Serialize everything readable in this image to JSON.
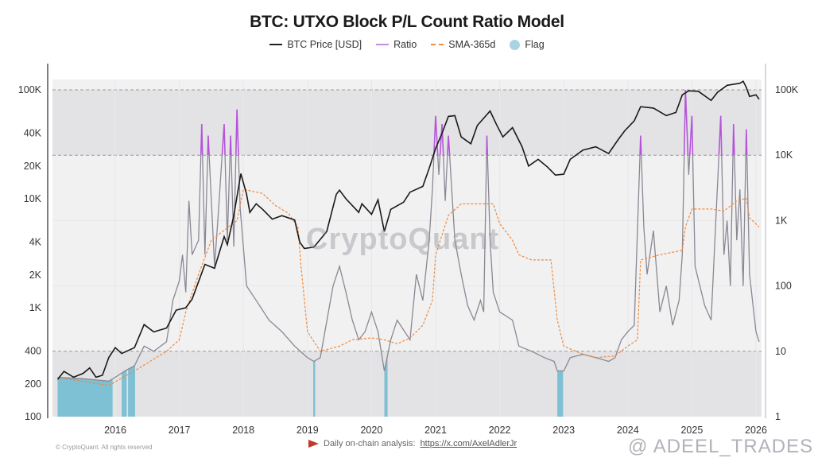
{
  "chart_data": {
    "type": "line",
    "title": "BTC: UTXO Block P/L Count Ratio Model",
    "legend": {
      "placement": "top-center",
      "entries": [
        {
          "label": "BTC Price [USD]",
          "color": "#222222",
          "style": "solid"
        },
        {
          "label": "Ratio",
          "color": "#b455d8",
          "style": "solid"
        },
        {
          "label": "SMA-365d",
          "color": "#f08a3c",
          "style": "dashed"
        },
        {
          "label": "Flag",
          "color": "#a9d3e3",
          "style": "dot"
        }
      ]
    },
    "x_ticks": [
      "2016",
      "2017",
      "2018",
      "2019",
      "2020",
      "2021",
      "2022",
      "2023",
      "2024",
      "2025",
      "2026"
    ],
    "x_range": [
      2015.1,
      2026.05
    ],
    "left_axis": {
      "scale": "log",
      "range": [
        100,
        100000
      ],
      "ticks": [
        "100K",
        "40K",
        "20K",
        "10K",
        "4K",
        "2K",
        "1K",
        "400",
        "200",
        "100"
      ],
      "tick_values": [
        100000,
        40000,
        20000,
        10000,
        4000,
        2000,
        1000,
        400,
        200,
        100
      ]
    },
    "right_axis": {
      "scale": "log",
      "range": [
        1,
        100000
      ],
      "ticks": [
        "100K",
        "10K",
        "1K",
        "100",
        "10",
        "1"
      ],
      "tick_values": [
        100000,
        10000,
        1000,
        100,
        10,
        1
      ]
    },
    "bands": {
      "upper": [
        10000,
        100000
      ],
      "lower": [
        1,
        10
      ],
      "color": "#e3e3e6"
    },
    "colors": {
      "ratio": "#8a8793",
      "ratio_high": "#b455d8",
      "price": "#1a1a1a",
      "sma": "#f08a3c",
      "flag": "#7fc0d4"
    },
    "series": [
      {
        "name": "BTC Price [USD]",
        "axis": "left",
        "points": [
          [
            2015.1,
            220
          ],
          [
            2015.2,
            260
          ],
          [
            2015.35,
            230
          ],
          [
            2015.5,
            250
          ],
          [
            2015.6,
            280
          ],
          [
            2015.7,
            230
          ],
          [
            2015.8,
            240
          ],
          [
            2015.9,
            350
          ],
          [
            2016.0,
            430
          ],
          [
            2016.1,
            380
          ],
          [
            2016.3,
            430
          ],
          [
            2016.45,
            700
          ],
          [
            2016.6,
            600
          ],
          [
            2016.8,
            650
          ],
          [
            2016.95,
            950
          ],
          [
            2017.1,
            1000
          ],
          [
            2017.2,
            1200
          ],
          [
            2017.4,
            2500
          ],
          [
            2017.55,
            2300
          ],
          [
            2017.7,
            4500
          ],
          [
            2017.75,
            3800
          ],
          [
            2017.85,
            7000
          ],
          [
            2017.96,
            17000
          ],
          [
            2018.05,
            11000
          ],
          [
            2018.1,
            7500
          ],
          [
            2018.2,
            9000
          ],
          [
            2018.3,
            8000
          ],
          [
            2018.45,
            6500
          ],
          [
            2018.6,
            7000
          ],
          [
            2018.8,
            6400
          ],
          [
            2018.88,
            4000
          ],
          [
            2018.95,
            3500
          ],
          [
            2019.1,
            3600
          ],
          [
            2019.3,
            5000
          ],
          [
            2019.45,
            11000
          ],
          [
            2019.5,
            12000
          ],
          [
            2019.6,
            10000
          ],
          [
            2019.8,
            7500
          ],
          [
            2019.85,
            9000
          ],
          [
            2020.0,
            7200
          ],
          [
            2020.1,
            9800
          ],
          [
            2020.2,
            5000
          ],
          [
            2020.3,
            8000
          ],
          [
            2020.5,
            9300
          ],
          [
            2020.6,
            11500
          ],
          [
            2020.8,
            13000
          ],
          [
            2020.9,
            19000
          ],
          [
            2021.0,
            29000
          ],
          [
            2021.1,
            40000
          ],
          [
            2021.2,
            57000
          ],
          [
            2021.3,
            58000
          ],
          [
            2021.4,
            37000
          ],
          [
            2021.55,
            32000
          ],
          [
            2021.65,
            47000
          ],
          [
            2021.85,
            64000
          ],
          [
            2021.95,
            48000
          ],
          [
            2022.05,
            37000
          ],
          [
            2022.2,
            45000
          ],
          [
            2022.35,
            30000
          ],
          [
            2022.45,
            20000
          ],
          [
            2022.6,
            23000
          ],
          [
            2022.75,
            19500
          ],
          [
            2022.87,
            16500
          ],
          [
            2023.0,
            16800
          ],
          [
            2023.1,
            23000
          ],
          [
            2023.3,
            28000
          ],
          [
            2023.5,
            30000
          ],
          [
            2023.7,
            26000
          ],
          [
            2023.85,
            35000
          ],
          [
            2023.95,
            42000
          ],
          [
            2024.1,
            52000
          ],
          [
            2024.2,
            70000
          ],
          [
            2024.4,
            68000
          ],
          [
            2024.6,
            58000
          ],
          [
            2024.75,
            62000
          ],
          [
            2024.85,
            90000
          ],
          [
            2024.95,
            98000
          ],
          [
            2025.1,
            97000
          ],
          [
            2025.3,
            80000
          ],
          [
            2025.4,
            95000
          ],
          [
            2025.55,
            110000
          ],
          [
            2025.75,
            115000
          ],
          [
            2025.8,
            120000
          ],
          [
            2025.85,
            105000
          ],
          [
            2025.9,
            87000
          ],
          [
            2026.0,
            90000
          ],
          [
            2026.05,
            82000
          ]
        ]
      },
      {
        "name": "Ratio",
        "axis": "right",
        "points": [
          [
            2015.1,
            4
          ],
          [
            2015.5,
            3.8
          ],
          [
            2015.9,
            3.5
          ],
          [
            2016.0,
            4
          ],
          [
            2016.15,
            5
          ],
          [
            2016.3,
            6
          ],
          [
            2016.45,
            12
          ],
          [
            2016.6,
            10
          ],
          [
            2016.8,
            14
          ],
          [
            2016.9,
            60
          ],
          [
            2017.0,
            120
          ],
          [
            2017.05,
            300
          ],
          [
            2017.1,
            80
          ],
          [
            2017.15,
            2000
          ],
          [
            2017.2,
            300
          ],
          [
            2017.3,
            500
          ],
          [
            2017.35,
            30000
          ],
          [
            2017.4,
            300
          ],
          [
            2017.45,
            20000
          ],
          [
            2017.55,
            200
          ],
          [
            2017.6,
            1000
          ],
          [
            2017.7,
            30000
          ],
          [
            2017.75,
            500
          ],
          [
            2017.8,
            20000
          ],
          [
            2017.85,
            400
          ],
          [
            2017.9,
            50000
          ],
          [
            2017.95,
            1500
          ],
          [
            2018.05,
            100
          ],
          [
            2018.2,
            60
          ],
          [
            2018.4,
            30
          ],
          [
            2018.6,
            20
          ],
          [
            2018.8,
            12
          ],
          [
            2019.0,
            8
          ],
          [
            2019.1,
            7
          ],
          [
            2019.2,
            8
          ],
          [
            2019.4,
            100
          ],
          [
            2019.5,
            200
          ],
          [
            2019.6,
            80
          ],
          [
            2019.7,
            30
          ],
          [
            2019.8,
            15
          ],
          [
            2019.9,
            20
          ],
          [
            2020.0,
            40
          ],
          [
            2020.1,
            20
          ],
          [
            2020.2,
            5
          ],
          [
            2020.3,
            15
          ],
          [
            2020.4,
            30
          ],
          [
            2020.6,
            15
          ],
          [
            2020.7,
            150
          ],
          [
            2020.8,
            60
          ],
          [
            2020.9,
            500
          ],
          [
            2020.95,
            3000
          ],
          [
            2021.0,
            40000
          ],
          [
            2021.05,
            5000
          ],
          [
            2021.1,
            30000
          ],
          [
            2021.15,
            2000
          ],
          [
            2021.2,
            20000
          ],
          [
            2021.3,
            500
          ],
          [
            2021.4,
            150
          ],
          [
            2021.5,
            50
          ],
          [
            2021.6,
            30
          ],
          [
            2021.7,
            60
          ],
          [
            2021.75,
            40
          ],
          [
            2021.8,
            20000
          ],
          [
            2021.85,
            500
          ],
          [
            2021.9,
            80
          ],
          [
            2022.0,
            40
          ],
          [
            2022.2,
            30
          ],
          [
            2022.3,
            12
          ],
          [
            2022.5,
            10
          ],
          [
            2022.7,
            8
          ],
          [
            2022.85,
            7
          ],
          [
            2022.9,
            5
          ],
          [
            2023.0,
            5
          ],
          [
            2023.1,
            8
          ],
          [
            2023.3,
            9
          ],
          [
            2023.5,
            8
          ],
          [
            2023.7,
            7
          ],
          [
            2023.8,
            8
          ],
          [
            2023.9,
            15
          ],
          [
            2024.0,
            20
          ],
          [
            2024.1,
            25
          ],
          [
            2024.2,
            20000
          ],
          [
            2024.25,
            800
          ],
          [
            2024.3,
            150
          ],
          [
            2024.4,
            700
          ],
          [
            2024.5,
            40
          ],
          [
            2024.6,
            100
          ],
          [
            2024.7,
            25
          ],
          [
            2024.8,
            60
          ],
          [
            2024.85,
            300
          ],
          [
            2024.9,
            100000
          ],
          [
            2024.95,
            5000
          ],
          [
            2025.0,
            40000
          ],
          [
            2025.05,
            200
          ],
          [
            2025.2,
            50
          ],
          [
            2025.3,
            30
          ],
          [
            2025.45,
            40000
          ],
          [
            2025.5,
            300
          ],
          [
            2025.55,
            1000
          ],
          [
            2025.6,
            100
          ],
          [
            2025.65,
            30000
          ],
          [
            2025.7,
            500
          ],
          [
            2025.75,
            3000
          ],
          [
            2025.8,
            100
          ],
          [
            2025.85,
            25000
          ],
          [
            2025.9,
            150
          ],
          [
            2026.0,
            20
          ],
          [
            2026.05,
            14
          ]
        ]
      },
      {
        "name": "SMA-365d",
        "axis": "right",
        "points": [
          [
            2015.1,
            4
          ],
          [
            2015.9,
            3
          ],
          [
            2016.3,
            5
          ],
          [
            2016.8,
            10
          ],
          [
            2017.0,
            15
          ],
          [
            2017.1,
            40
          ],
          [
            2017.3,
            150
          ],
          [
            2017.5,
            500
          ],
          [
            2017.6,
            600
          ],
          [
            2017.9,
            1000
          ],
          [
            2018.0,
            3000
          ],
          [
            2018.3,
            2600
          ],
          [
            2018.5,
            1700
          ],
          [
            2018.7,
            1300
          ],
          [
            2018.85,
            800
          ],
          [
            2018.9,
            200
          ],
          [
            2019.0,
            20
          ],
          [
            2019.2,
            10
          ],
          [
            2019.5,
            12
          ],
          [
            2019.7,
            15
          ],
          [
            2020.0,
            16
          ],
          [
            2020.2,
            15
          ],
          [
            2020.4,
            13
          ],
          [
            2020.6,
            16
          ],
          [
            2020.8,
            25
          ],
          [
            2020.95,
            60
          ],
          [
            2021.0,
            300
          ],
          [
            2021.2,
            1200
          ],
          [
            2021.4,
            1800
          ],
          [
            2021.6,
            1800
          ],
          [
            2021.9,
            1800
          ],
          [
            2022.0,
            900
          ],
          [
            2022.2,
            500
          ],
          [
            2022.3,
            300
          ],
          [
            2022.5,
            250
          ],
          [
            2022.8,
            250
          ],
          [
            2022.9,
            30
          ],
          [
            2023.0,
            12
          ],
          [
            2023.3,
            9
          ],
          [
            2023.5,
            8
          ],
          [
            2023.8,
            8.5
          ],
          [
            2024.0,
            12
          ],
          [
            2024.15,
            15
          ],
          [
            2024.2,
            250
          ],
          [
            2024.5,
            300
          ],
          [
            2024.85,
            350
          ],
          [
            2024.9,
            800
          ],
          [
            2025.0,
            1500
          ],
          [
            2025.3,
            1500
          ],
          [
            2025.5,
            1400
          ],
          [
            2025.7,
            2000
          ],
          [
            2025.85,
            2200
          ],
          [
            2025.9,
            1100
          ],
          [
            2026.05,
            800
          ]
        ]
      }
    ],
    "flags": [
      [
        2015.1,
        2015.95
      ],
      [
        2016.1,
        2016.17
      ],
      [
        2016.2,
        2016.3
      ],
      [
        2019.09,
        2019.11
      ],
      [
        2020.2,
        2020.24
      ],
      [
        2022.9,
        2022.98
      ]
    ]
  },
  "footer": {
    "text": "Daily on-chain analysis:",
    "link": "https://x.com/AxelAdlerJr"
  },
  "watermarks": {
    "center": "CryptoQuant",
    "bottom_right": "@ ADEEL_TRADES",
    "copyright": "© CryptoQuant. All rights reserved"
  }
}
